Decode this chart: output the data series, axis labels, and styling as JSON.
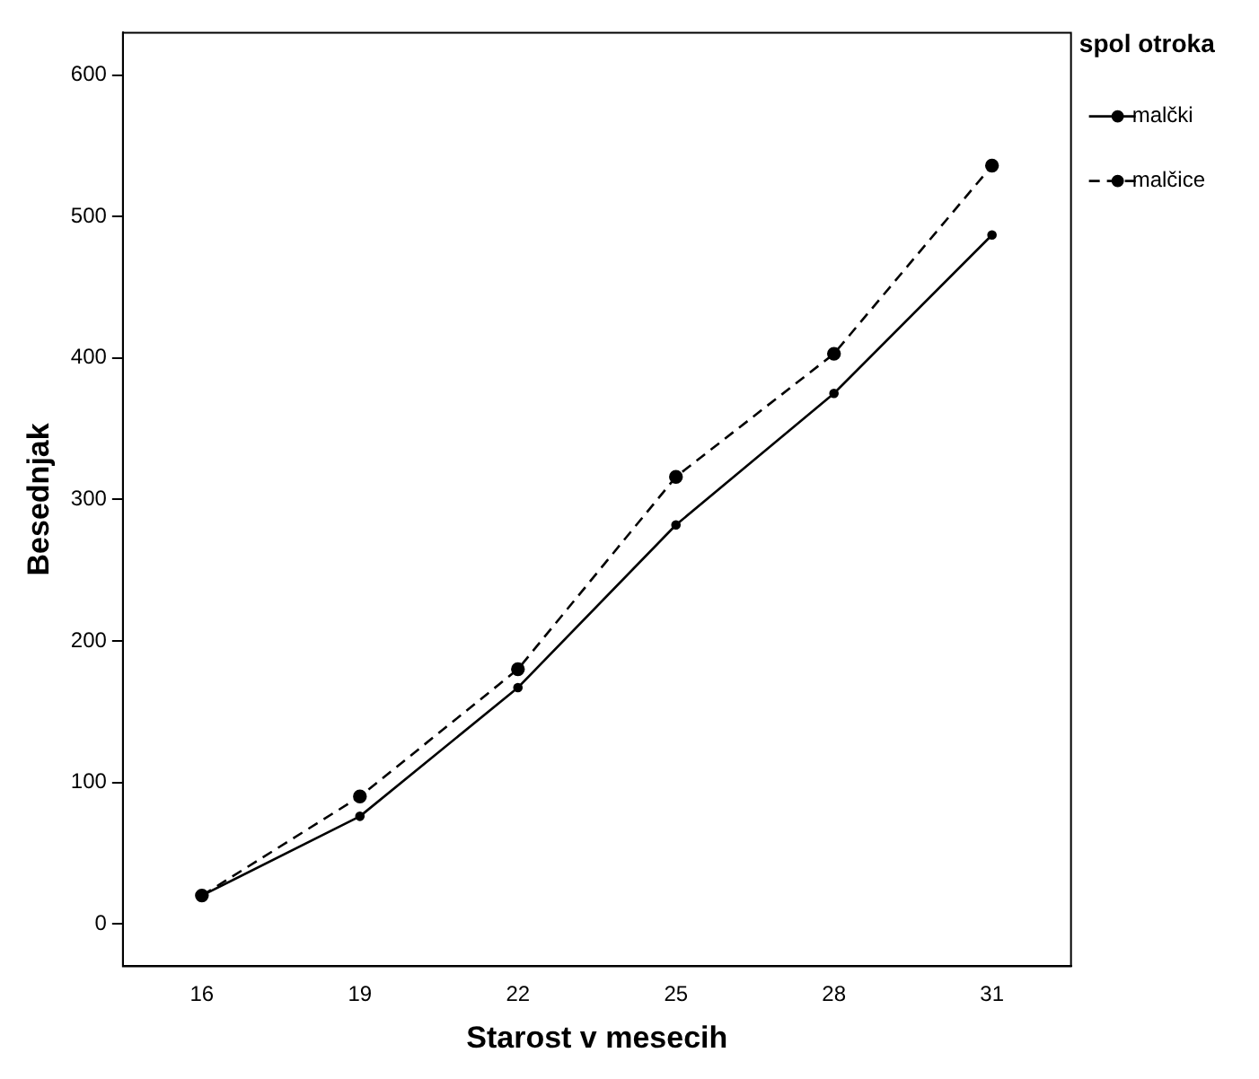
{
  "chart_data": {
    "type": "line",
    "xlabel": "Starost v mesecih",
    "ylabel": "Besednjak",
    "legend_title": "spol otroka",
    "legend": "top right",
    "grid": false,
    "marker": "circle",
    "categories": [
      "16",
      "19",
      "22",
      "25",
      "28",
      "31"
    ],
    "ylim": [
      -30,
      630
    ],
    "yticks": [
      0,
      100,
      200,
      300,
      400,
      500,
      600
    ],
    "series": [
      {
        "name": "malčki",
        "color": "#000000",
        "line_style": "solid",
        "values": [
          20,
          76,
          167,
          282,
          375,
          487
        ]
      },
      {
        "name": "malčice",
        "color": "#000000",
        "line_style": "dashed",
        "values": [
          20,
          90,
          180,
          316,
          403,
          536
        ]
      }
    ]
  }
}
